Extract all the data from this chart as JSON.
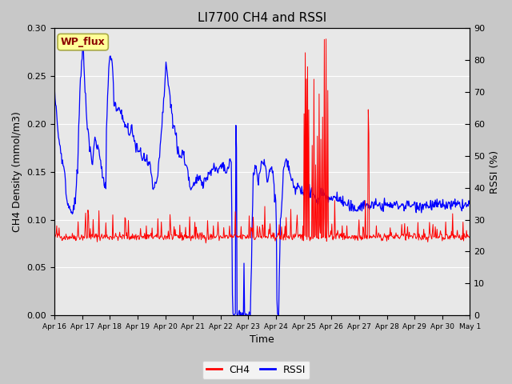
{
  "title": "LI7700 CH4 and RSSI",
  "xlabel": "Time",
  "ylabel_left": "CH4 Density (mmol/m3)",
  "ylabel_right": "RSSI (%)",
  "ylim_left": [
    0.0,
    0.3
  ],
  "ylim_right": [
    0,
    90
  ],
  "yticks_left": [
    0.0,
    0.05,
    0.1,
    0.15,
    0.2,
    0.25,
    0.3
  ],
  "yticks_right_labels": [
    "0",
    "10",
    "20",
    "30",
    "40",
    "50",
    "60",
    "70",
    "80",
    "90"
  ],
  "yticks_right_vals": [
    0,
    10,
    20,
    30,
    40,
    50,
    60,
    70,
    80,
    90
  ],
  "xtick_labels": [
    "Apr 16",
    "Apr 17",
    "Apr 18",
    "Apr 19",
    "Apr 20",
    "Apr 21",
    "Apr 22",
    "Apr 23",
    "Apr 24",
    "Apr 25",
    "Apr 26",
    "Apr 27",
    "Apr 28",
    "Apr 29",
    "Apr 30",
    "May 1"
  ],
  "ch4_color": "#FF0000",
  "rssi_color": "#0000FF",
  "fig_bg_color": "#C8C8C8",
  "plot_bg_color": "#E8E8E8",
  "wp_flux_label": "WP_flux",
  "wp_flux_bg": "#FFFF99",
  "wp_flux_border": "#AAAA44",
  "wp_flux_text_color": "#8B0000",
  "legend_ch4": "CH4",
  "legend_rssi": "RSSI",
  "title_fontsize": 11,
  "label_fontsize": 9,
  "tick_fontsize": 8
}
